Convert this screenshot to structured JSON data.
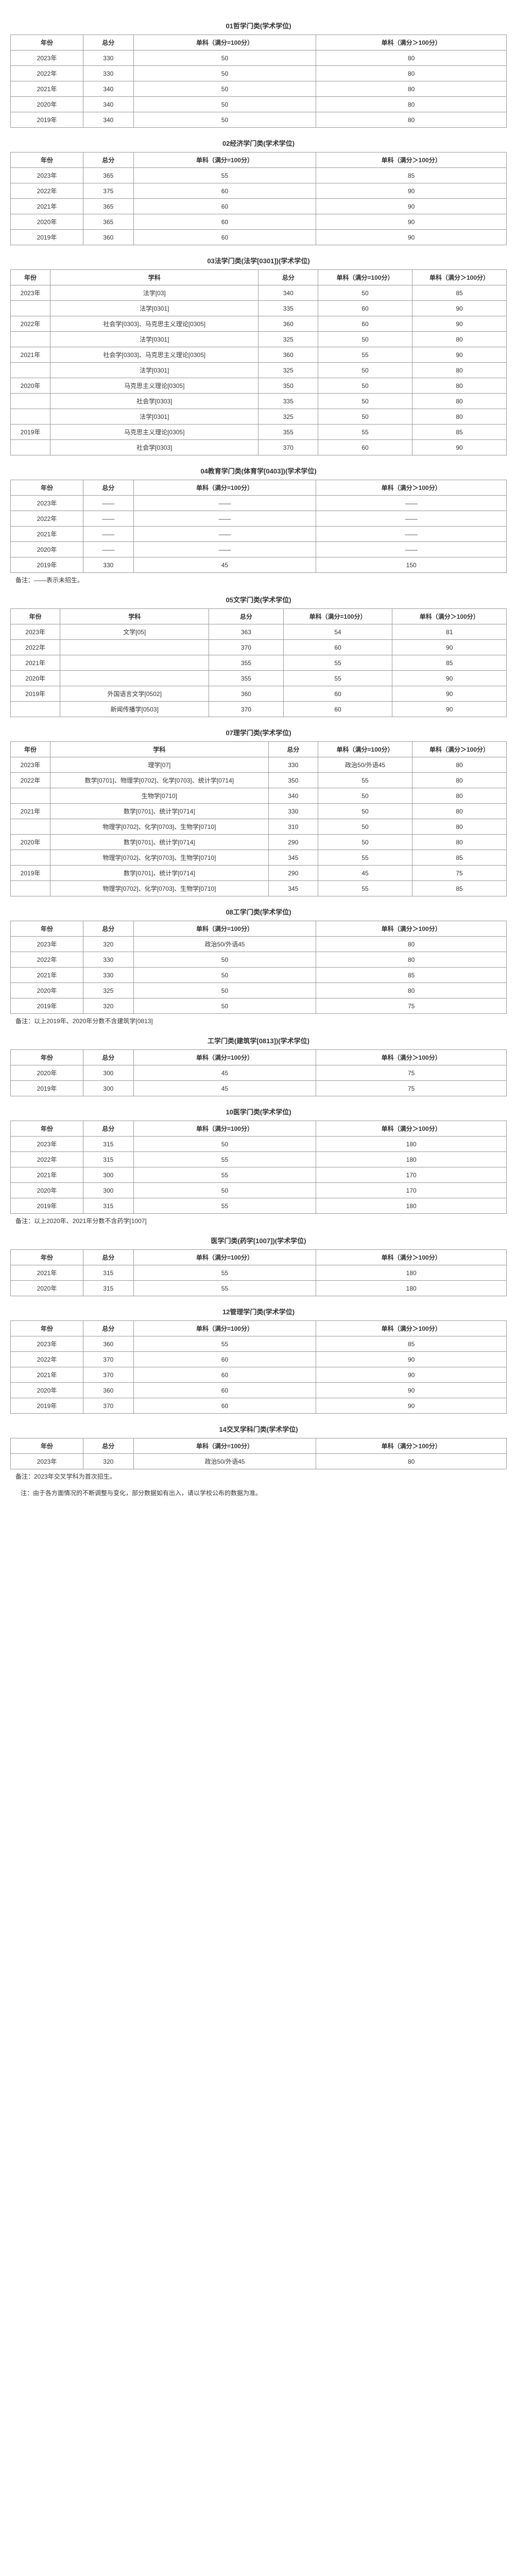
{
  "col_year": "年份",
  "col_total": "总分",
  "col_subject": "学科",
  "col_s100": "单科（满分=100分）",
  "col_g100": "单科（满分＞100分）",
  "t01": {
    "title": "01哲学门类(学术学位)",
    "rows": [
      [
        "2023年",
        "330",
        "50",
        "80"
      ],
      [
        "2022年",
        "330",
        "50",
        "80"
      ],
      [
        "2021年",
        "340",
        "50",
        "80"
      ],
      [
        "2020年",
        "340",
        "50",
        "80"
      ],
      [
        "2019年",
        "340",
        "50",
        "80"
      ]
    ]
  },
  "t02": {
    "title": "02经济学门类(学术学位)",
    "rows": [
      [
        "2023年",
        "365",
        "55",
        "85"
      ],
      [
        "2022年",
        "375",
        "60",
        "90"
      ],
      [
        "2021年",
        "365",
        "60",
        "90"
      ],
      [
        "2020年",
        "365",
        "60",
        "90"
      ],
      [
        "2019年",
        "360",
        "60",
        "90"
      ]
    ]
  },
  "t03": {
    "title": "03法学门类(法学[0301])(学术学位)",
    "rows": [
      [
        "2023年",
        "法学[03]",
        "340",
        "50",
        "85"
      ],
      [
        "",
        "法学[0301]",
        "335",
        "60",
        "90"
      ],
      [
        "2022年",
        "社会学[0303]、马克思主义理论[0305]",
        "360",
        "60",
        "90"
      ],
      [
        "",
        "法学[0301]",
        "325",
        "50",
        "80"
      ],
      [
        "2021年",
        "社会学[0303]、马克思主义理论[0305]",
        "360",
        "55",
        "90"
      ],
      [
        "",
        "法学[0301]",
        "325",
        "50",
        "80"
      ],
      [
        "2020年",
        "马克思主义理论[0305]",
        "350",
        "50",
        "80"
      ],
      [
        "",
        "社会学[0303]",
        "335",
        "50",
        "80"
      ],
      [
        "",
        "法学[0301]",
        "325",
        "50",
        "80"
      ],
      [
        "2019年",
        "马克思主义理论[0305]",
        "355",
        "55",
        "85"
      ],
      [
        "",
        "社会学[0303]",
        "370",
        "60",
        "90"
      ]
    ]
  },
  "t04": {
    "title": "04教育学门类(体育学[0403])(学术学位)",
    "rows": [
      [
        "2023年",
        "——",
        "——",
        "——"
      ],
      [
        "2022年",
        "——",
        "——",
        "——"
      ],
      [
        "2021年",
        "——",
        "——",
        "——"
      ],
      [
        "2020年",
        "——",
        "——",
        "——"
      ],
      [
        "2019年",
        "330",
        "45",
        "150"
      ]
    ],
    "note": "备注：——表示未招生。"
  },
  "t05": {
    "title": "05文学门类(学术学位)",
    "rows": [
      [
        "2023年",
        "文学[05]",
        "363",
        "54",
        "81"
      ],
      [
        "2022年",
        "",
        "370",
        "60",
        "90"
      ],
      [
        "2021年",
        "",
        "355",
        "55",
        "85"
      ],
      [
        "2020年",
        "",
        "355",
        "55",
        "90"
      ],
      [
        "2019年",
        "外国语言文学[0502]",
        "360",
        "60",
        "90"
      ],
      [
        "",
        "新闻传播学[0503]",
        "370",
        "60",
        "90"
      ]
    ]
  },
  "t07": {
    "title": "07理学门类(学术学位)",
    "rows": [
      [
        "2023年",
        "理学[07]",
        "330",
        "政治50/外语45",
        "80"
      ],
      [
        "2022年",
        "数学[0701]、物理学[0702]、化学[0703]、统计学[0714]",
        "350",
        "55",
        "80"
      ],
      [
        "",
        "生物学[0710]",
        "340",
        "50",
        "80"
      ],
      [
        "2021年",
        "数学[0701]、统计学[0714]",
        "330",
        "50",
        "80"
      ],
      [
        "",
        "物理学[0702]、化学[0703]、生物学[0710]",
        "310",
        "50",
        "80"
      ],
      [
        "2020年",
        "数学[0701]、统计学[0714]",
        "290",
        "50",
        "80"
      ],
      [
        "",
        "物理学[0702]、化学[0703]、生物学[0710]",
        "345",
        "55",
        "85"
      ],
      [
        "2019年",
        "数学[0701]、统计学[0714]",
        "290",
        "45",
        "75"
      ],
      [
        "",
        "物理学[0702]、化学[0703]、生物学[0710]",
        "345",
        "55",
        "85"
      ]
    ]
  },
  "t08": {
    "title": "08工学门类(学术学位)",
    "rows": [
      [
        "2023年",
        "320",
        "政治50/外语45",
        "80"
      ],
      [
        "2022年",
        "330",
        "50",
        "80"
      ],
      [
        "2021年",
        "330",
        "50",
        "85"
      ],
      [
        "2020年",
        "325",
        "50",
        "80"
      ],
      [
        "2019年",
        "320",
        "50",
        "75"
      ]
    ],
    "note": "备注：以上2019年、2020年分数不含建筑学[0813]"
  },
  "t08b": {
    "title": "工学门类(建筑学[0813])(学术学位)",
    "rows": [
      [
        "2020年",
        "300",
        "45",
        "75"
      ],
      [
        "2019年",
        "300",
        "45",
        "75"
      ]
    ]
  },
  "t10": {
    "title": "10医学门类(学术学位)",
    "rows": [
      [
        "2023年",
        "315",
        "50",
        "180"
      ],
      [
        "2022年",
        "315",
        "55",
        "180"
      ],
      [
        "2021年",
        "300",
        "55",
        "170"
      ],
      [
        "2020年",
        "300",
        "50",
        "170"
      ],
      [
        "2019年",
        "315",
        "55",
        "180"
      ]
    ],
    "note": "备注：以上2020年、2021年分数不含药学[1007]"
  },
  "t10b": {
    "title": "医学门类(药学[1007])(学术学位)",
    "rows": [
      [
        "2021年",
        "315",
        "55",
        "180"
      ],
      [
        "2020年",
        "315",
        "55",
        "180"
      ]
    ]
  },
  "t12": {
    "title": "12管理学门类(学术学位)",
    "rows": [
      [
        "2023年",
        "360",
        "55",
        "85"
      ],
      [
        "2022年",
        "370",
        "60",
        "90"
      ],
      [
        "2021年",
        "370",
        "60",
        "90"
      ],
      [
        "2020年",
        "360",
        "60",
        "90"
      ],
      [
        "2019年",
        "370",
        "60",
        "90"
      ]
    ]
  },
  "t14": {
    "title": "14交叉学科门类(学术学位)",
    "rows": [
      [
        "2023年",
        "320",
        "政治50/外语45",
        "80"
      ]
    ],
    "note": "备注：2023年交叉学科为首次招生。"
  },
  "final": "注：由于各方面情况的不断调整与变化，部分数据如有出入，请以学校公布的数据为准。"
}
